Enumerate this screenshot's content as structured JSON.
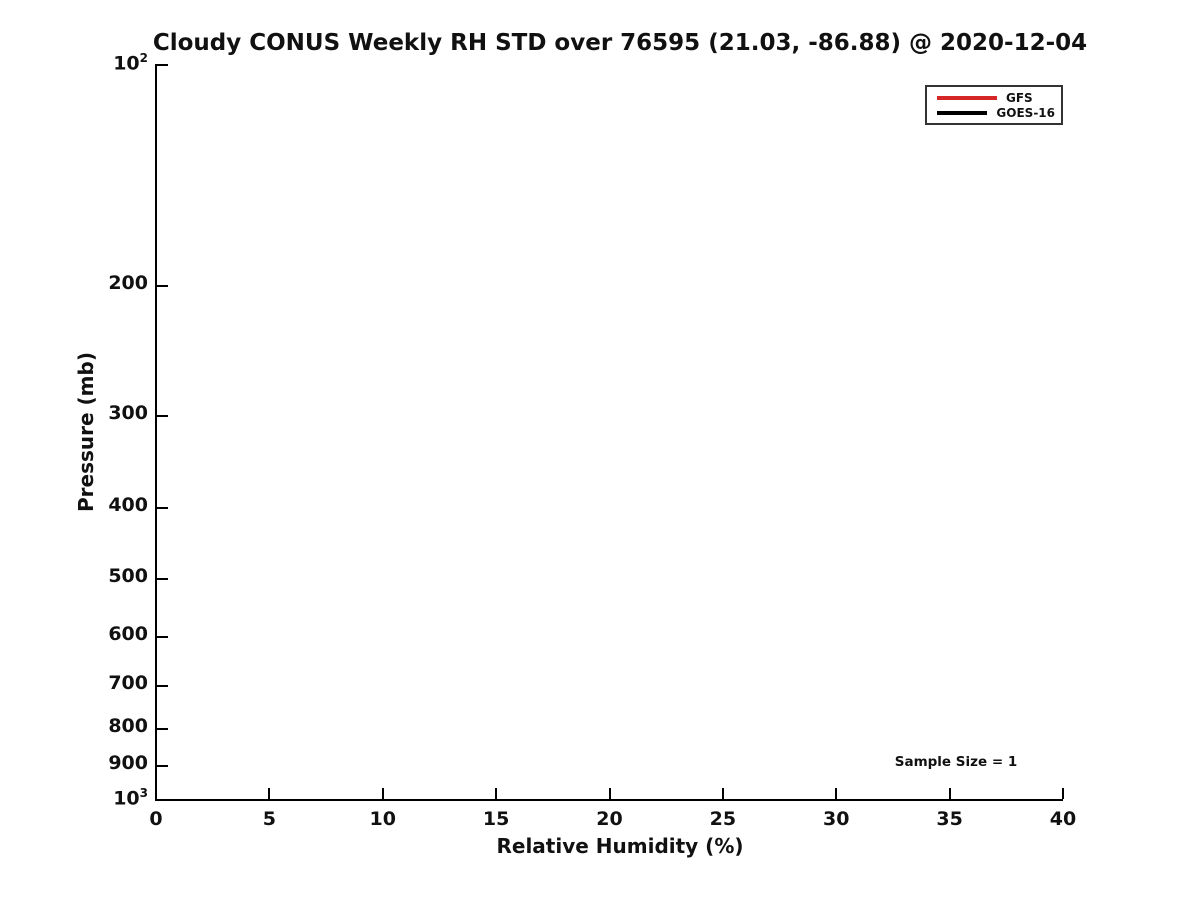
{
  "figure": {
    "background_color": "#ffffff",
    "text_color": "#111111",
    "axis_color": "#000000"
  },
  "chart_data": {
    "type": "line",
    "title": "Cloudy CONUS Weekly RH STD over 76595 (21.03, -86.88) @ 2020-12-04",
    "xlabel": "Relative Humidity (%)",
    "ylabel": "Pressure (mb)",
    "xlim": [
      0,
      40
    ],
    "ylim": [
      100,
      1000
    ],
    "xscale": "linear",
    "yscale": "log",
    "y_axis_direction": "increasing-downward",
    "grid": false,
    "x_ticks": {
      "values": [
        0,
        5,
        10,
        15,
        20,
        25,
        30,
        35,
        40
      ],
      "labels": [
        "0",
        "5",
        "10",
        "15",
        "20",
        "25",
        "30",
        "35",
        "40"
      ]
    },
    "y_ticks": {
      "values": [
        100,
        200,
        300,
        400,
        500,
        600,
        700,
        800,
        900,
        1000
      ],
      "labels": [
        "10^2",
        "200",
        "300",
        "400",
        "500",
        "600",
        "700",
        "800",
        "900",
        "10^3"
      ]
    },
    "series": [
      {
        "name": "GFS",
        "color": "#d62728",
        "x": [],
        "y": []
      },
      {
        "name": "GOES-16",
        "color": "#000000",
        "x": [],
        "y": []
      }
    ],
    "legend_position": "upper right",
    "annotations": [
      {
        "text": "Sample Size = 1"
      }
    ]
  }
}
